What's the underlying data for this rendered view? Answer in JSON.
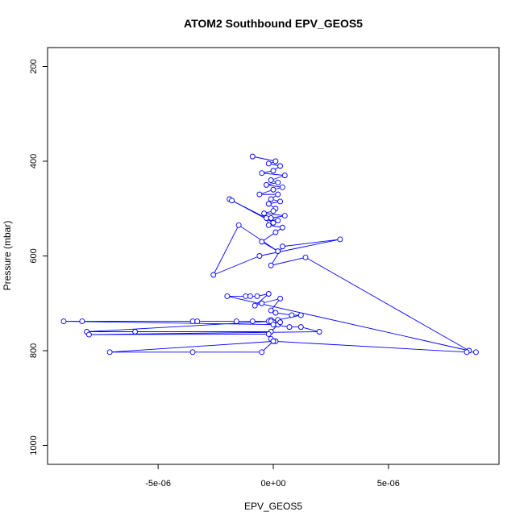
{
  "chart_data": {
    "type": "line",
    "title": "ATOM2 Southbound EPV_GEOS5",
    "xlabel": "EPV_GEOS5",
    "ylabel": "Pressure (mbar)",
    "xlim": [
      -9.8e-06,
      9.8e-06
    ],
    "ylim": [
      1040,
      160
    ],
    "y_reversed": true,
    "x_ticks": [
      -5e-06,
      0,
      5e-06
    ],
    "x_tick_labels": [
      "-5e-06",
      "0e+00",
      "5e-06"
    ],
    "y_ticks": [
      200,
      400,
      600,
      800,
      1000
    ],
    "y_tick_labels": [
      "200",
      "400",
      "600",
      "800",
      "1000"
    ],
    "grid": false,
    "marker": "open-circle",
    "colors": {
      "series": "#0000ff",
      "axis": "#000000"
    },
    "series": [
      {
        "x": [
          -9e-07,
          1e-07,
          -2e-07,
          3e-07,
          0.0,
          -5e-07,
          5e-07,
          -1e-07,
          2e-07,
          -3e-07,
          4e-07,
          0.0,
          -6e-07,
          2e-07,
          -1e-07,
          3e-07,
          -2e-07,
          1e-07,
          0.0,
          -4e-07,
          5e-07,
          -1e-07,
          2e-07,
          0.0,
          -1.9e-06,
          -1.8e-06,
          -3e-07,
          -2e-07,
          4e-07,
          1e-07,
          -5e-07,
          2e-07,
          -1.5e-06,
          -2.6e-06,
          -6e-07,
          2.9e-06,
          4e-07,
          -1e-07,
          1.4e-06,
          8.5e-06,
          -2e-06,
          -1.2e-06,
          -1e-06,
          -7e-07,
          -2e-07,
          -8e-07,
          -5e-07,
          3e-07,
          -1e-07,
          1e-07,
          8e-07,
          1.2e-06,
          2e-07,
          -1e-07,
          0.0,
          2e-07,
          -9.1e-06,
          -8.3e-06,
          -3.5e-06,
          -3.3e-06,
          -1.6e-06,
          -9e-07,
          -2e-07,
          -1e-07,
          -8.1e-06,
          -6e-06,
          -1e-07,
          3e-07,
          0.0,
          7e-07,
          1.2e-06,
          2e-06,
          -8e-06,
          -2e-07,
          -1e-07,
          0.0,
          1e-07,
          -7.1e-06,
          -3.5e-06,
          -5e-07,
          0.0,
          8.4e-06,
          8.8e-06
        ],
        "y": [
          390,
          400,
          405,
          410,
          420,
          425,
          430,
          440,
          445,
          450,
          455,
          460,
          470,
          470,
          480,
          485,
          490,
          500,
          505,
          510,
          515,
          520,
          525,
          530,
          480,
          483,
          520,
          535,
          540,
          550,
          570,
          590,
          535,
          640,
          600,
          565,
          580,
          620,
          603,
          800,
          685,
          685,
          685,
          685,
          680,
          705,
          700,
          690,
          715,
          720,
          725,
          725,
          735,
          735,
          740,
          745,
          738,
          738,
          738,
          738,
          738,
          738,
          738,
          738,
          760,
          760,
          760,
          740,
          745,
          750,
          750,
          760,
          766,
          765,
          775,
          780,
          780,
          803,
          803,
          803,
          780,
          803,
          803
        ]
      }
    ]
  }
}
